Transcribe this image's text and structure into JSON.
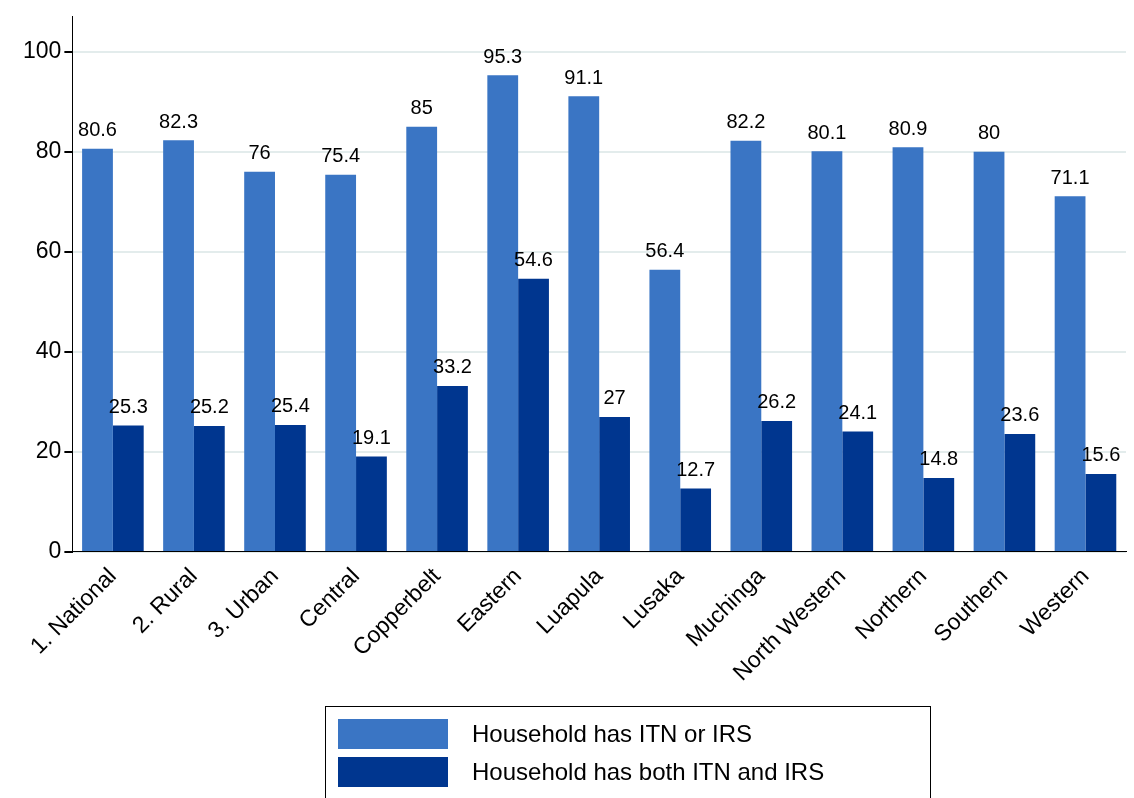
{
  "chart_data": {
    "type": "bar",
    "categories": [
      "1. National",
      "2. Rural",
      "3. Urban",
      "Central",
      "Copperbelt",
      "Eastern",
      "Luapula",
      "Lusaka",
      "Muchinga",
      "North Western",
      "Northern",
      "Southern",
      "Western"
    ],
    "series": [
      {
        "name": "Household has ITN or IRS",
        "color": "#3a75c4",
        "values": [
          80.6,
          82.3,
          76,
          75.4,
          85,
          95.3,
          91.1,
          56.4,
          82.2,
          80.1,
          80.9,
          80,
          71.1
        ]
      },
      {
        "name": "Household has both ITN and IRS",
        "color": "#00368f",
        "values": [
          25.3,
          25.2,
          25.4,
          19.1,
          33.2,
          54.6,
          27,
          12.7,
          26.2,
          24.1,
          14.8,
          23.6,
          15.6
        ]
      }
    ],
    "ylim": [
      0,
      107
    ],
    "yticks": [
      0,
      20,
      40,
      60,
      80,
      100
    ],
    "grid": "y",
    "legend": "bottom",
    "data_labels": true
  }
}
